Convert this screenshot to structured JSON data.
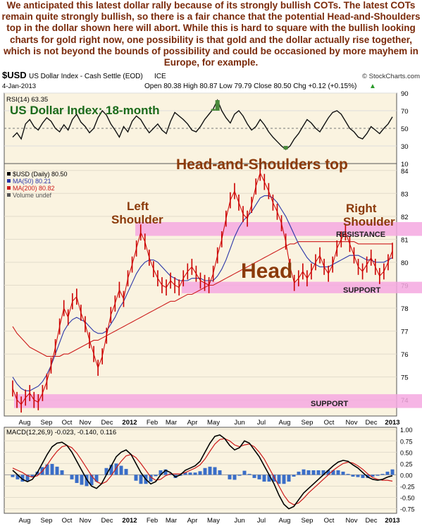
{
  "commentary": "We anticipated this latest dollar rally because of its strongly bullish COTs. The latest COTs remain quite strongly bullish, so there is a fair chance that the potential Head-and-Shoulders top in the dollar shown here will abort. While this is hard to square with the bullish looking charts for gold right now, one possibility is that gold and the dollar actually rise together, which is not beyond the bounds of possibility and could be occasioned by more mayhem in Europe, for example.",
  "chart_header": {
    "symbol": "$USD",
    "name": "US Dollar Index - Cash Settle (EOD)",
    "exchange": "ICE",
    "source": "© StockCharts.com",
    "date": "4-Jan-2013",
    "quote": "Open 80.38  High 80.87  Low 79.79  Close 80.50  Chg +0.12 (+0.15%)",
    "quote_arrow": "▲"
  },
  "colors": {
    "price_bars": "#cc0000",
    "ma50": "#2a35a8",
    "ma200": "#cc1a1a",
    "pink_zone": "#f5a8e0",
    "annotation_brown": "#8b3a0a",
    "rsi_title_green": "#1a6a1a",
    "macd_hist": "#3a6ec8",
    "panel_bg": "#ffffff",
    "background": "#faf3e0"
  },
  "chart_data": [
    {
      "type": "line",
      "panel": "rsi",
      "label": "RSI(14) 63.35",
      "title": "US Dollar Index: 18-month",
      "ylim": [
        10,
        90
      ],
      "yticks": [
        90,
        70,
        50,
        30,
        10
      ],
      "overbought": 70,
      "oversold": 30,
      "series": [
        {
          "name": "RSI(14)",
          "values": [
            40,
            45,
            38,
            55,
            60,
            52,
            48,
            56,
            62,
            58,
            50,
            46,
            54,
            48,
            60,
            66,
            57,
            52,
            45,
            50,
            62,
            70,
            65,
            55,
            48,
            40,
            52,
            46,
            58,
            64,
            60,
            52,
            45,
            50,
            55,
            48,
            44,
            58,
            68,
            64,
            60,
            55,
            48,
            46,
            52,
            60,
            66,
            72,
            82,
            70,
            62,
            56,
            66,
            70,
            64,
            55,
            48,
            52,
            60,
            54,
            46,
            40,
            35,
            30,
            26,
            30,
            38,
            44,
            52,
            60,
            56,
            50,
            46,
            54,
            62,
            68,
            70,
            66,
            58,
            50,
            46,
            40,
            38,
            44,
            52,
            48,
            44,
            50,
            55,
            63
          ]
        }
      ]
    },
    {
      "type": "line",
      "panel": "price",
      "title": "Head-and-Shoulders top",
      "ylim": [
        73.3,
        84.3
      ],
      "yticks": [
        84,
        83,
        82,
        81,
        80,
        79,
        78,
        77,
        76,
        75,
        74
      ],
      "legend": [
        "$USD (Daily) 80.50",
        "MA(50) 80.21",
        "MA(200) 80.82",
        "Volume undef"
      ],
      "annotations": [
        "Left Shoulder",
        "Head",
        "Right Shoulder",
        "RESISTANCE",
        "SUPPORT",
        "SUPPORT"
      ],
      "zones": [
        {
          "label": "RESISTANCE",
          "from_value": 81.15,
          "to_value": 81.75
        },
        {
          "label": "SUPPORT",
          "from_value": 78.65,
          "to_value": 79.15
        },
        {
          "label": "SUPPORT",
          "from_value": 73.65,
          "to_value": 74.25
        }
      ],
      "series": [
        {
          "name": "$USD (Daily) 80.50",
          "values": [
            74.5,
            74.0,
            73.8,
            74.1,
            74.3,
            74.0,
            73.9,
            74.3,
            74.8,
            75.5,
            76.3,
            77.2,
            78.0,
            77.6,
            78.3,
            78.5,
            77.8,
            77.3,
            76.6,
            76.0,
            75.4,
            75.9,
            76.8,
            77.7,
            78.2,
            78.8,
            78.4,
            79.3,
            79.9,
            80.6,
            81.3,
            80.9,
            80.2,
            79.7,
            79.3,
            79.0,
            78.9,
            79.2,
            79.0,
            78.9,
            79.3,
            79.6,
            79.8,
            79.5,
            79.2,
            79.1,
            79.0,
            79.5,
            80.3,
            81.0,
            81.9,
            82.7,
            83.1,
            82.6,
            82.1,
            81.9,
            82.5,
            83.3,
            83.9,
            83.5,
            83.1,
            82.6,
            82.2,
            81.7,
            80.9,
            79.8,
            79.1,
            79.3,
            79.6,
            79.3,
            79.6,
            80.0,
            80.3,
            79.8,
            79.5,
            79.9,
            80.6,
            81.0,
            81.3,
            80.8,
            80.3,
            79.8,
            79.6,
            79.9,
            80.2,
            79.8,
            79.4,
            79.6,
            80.0,
            80.5
          ]
        },
        {
          "name": "MA(50) 80.21",
          "values": [
            75.0,
            74.7,
            74.5,
            74.4,
            74.4,
            74.5,
            74.6,
            74.8,
            75.1,
            75.5,
            76.0,
            76.5,
            77.0,
            77.3,
            77.5,
            77.6,
            77.5,
            77.4,
            77.2,
            77.0,
            76.9,
            76.9,
            77.0,
            77.3,
            77.6,
            78.0,
            78.3,
            78.7,
            79.1,
            79.5,
            79.8,
            80.0,
            80.1,
            80.1,
            80.0,
            79.8,
            79.6,
            79.4,
            79.3,
            79.2,
            79.2,
            79.2,
            79.3,
            79.3,
            79.3,
            79.2,
            79.2,
            79.2,
            79.4,
            79.7,
            80.1,
            80.6,
            81.1,
            81.5,
            81.8,
            82.0,
            82.2,
            82.5,
            82.8,
            82.9,
            82.9,
            82.8,
            82.6,
            82.3,
            82.0,
            81.6,
            81.2,
            80.8,
            80.5,
            80.2,
            80.0,
            79.9,
            79.8,
            79.8,
            79.8,
            79.9,
            80.0,
            80.1,
            80.2,
            80.3,
            80.3,
            80.3,
            80.2,
            80.1,
            80.1,
            80.0,
            80.0,
            80.0,
            80.1,
            80.2
          ]
        },
        {
          "name": "MA(200) 80.82",
          "values": [
            77.2,
            76.9,
            76.7,
            76.5,
            76.3,
            76.2,
            76.1,
            76.0,
            75.9,
            75.9,
            75.9,
            75.9,
            76.0,
            76.0,
            76.1,
            76.2,
            76.3,
            76.4,
            76.5,
            76.6,
            76.6,
            76.7,
            76.8,
            76.9,
            77.0,
            77.1,
            77.2,
            77.3,
            77.4,
            77.5,
            77.6,
            77.7,
            77.8,
            77.9,
            78.0,
            78.1,
            78.2,
            78.3,
            78.3,
            78.4,
            78.5,
            78.6,
            78.6,
            78.7,
            78.8,
            78.9,
            79.0,
            79.0,
            79.1,
            79.2,
            79.3,
            79.4,
            79.5,
            79.6,
            79.7,
            79.8,
            79.9,
            80.0,
            80.1,
            80.2,
            80.3,
            80.4,
            80.5,
            80.6,
            80.7,
            80.8,
            80.8,
            80.9,
            80.9,
            80.9,
            80.9,
            80.9,
            80.9,
            80.9,
            80.9,
            80.9,
            80.9,
            80.9,
            80.9,
            80.9,
            80.9,
            80.8,
            80.8,
            80.8,
            80.8,
            80.8,
            80.8,
            80.8,
            80.8,
            80.8
          ]
        }
      ]
    },
    {
      "type": "line",
      "panel": "macd",
      "label": "MACD(12,26,9) -0.023, -0.140, 0.116",
      "ylim": [
        -0.85,
        1.05
      ],
      "yticks": [
        1.0,
        0.75,
        0.5,
        0.25,
        0.0,
        -0.25,
        -0.5,
        -0.75
      ],
      "series": [
        {
          "name": "MACD",
          "values": [
            0.1,
            0.0,
            -0.1,
            -0.15,
            -0.1,
            0.05,
            0.25,
            0.45,
            0.62,
            0.7,
            0.72,
            0.65,
            0.5,
            0.3,
            0.1,
            -0.1,
            -0.25,
            -0.3,
            -0.2,
            0.0,
            0.2,
            0.4,
            0.5,
            0.55,
            0.45,
            0.25,
            0.05,
            -0.1,
            -0.2,
            -0.15,
            0.0,
            0.1,
            0.05,
            -0.05,
            0.0,
            0.1,
            0.15,
            0.2,
            0.3,
            0.5,
            0.7,
            0.85,
            0.88,
            0.8,
            0.65,
            0.55,
            0.6,
            0.75,
            0.7,
            0.55,
            0.4,
            0.2,
            0.0,
            -0.2,
            -0.45,
            -0.65,
            -0.75,
            -0.7,
            -0.55,
            -0.4,
            -0.3,
            -0.2,
            -0.1,
            0.0,
            0.1,
            0.2,
            0.28,
            0.32,
            0.3,
            0.22,
            0.15,
            0.05,
            -0.05,
            -0.1,
            -0.12,
            -0.1,
            -0.05,
            -0.02
          ]
        },
        {
          "name": "Signal",
          "values": [
            0.15,
            0.1,
            0.05,
            -0.02,
            -0.05,
            -0.02,
            0.08,
            0.22,
            0.38,
            0.52,
            0.62,
            0.65,
            0.6,
            0.48,
            0.32,
            0.15,
            -0.02,
            -0.15,
            -0.2,
            -0.15,
            -0.02,
            0.15,
            0.3,
            0.42,
            0.45,
            0.38,
            0.25,
            0.1,
            -0.05,
            -0.12,
            -0.1,
            -0.02,
            0.02,
            0.02,
            0.02,
            0.05,
            0.1,
            0.15,
            0.22,
            0.35,
            0.52,
            0.68,
            0.78,
            0.8,
            0.75,
            0.66,
            0.62,
            0.66,
            0.68,
            0.62,
            0.5,
            0.35,
            0.15,
            -0.05,
            -0.25,
            -0.45,
            -0.6,
            -0.66,
            -0.62,
            -0.52,
            -0.4,
            -0.3,
            -0.2,
            -0.1,
            0.0,
            0.1,
            0.18,
            0.25,
            0.28,
            0.26,
            0.2,
            0.12,
            0.02,
            -0.06,
            -0.1,
            -0.12,
            -0.12,
            -0.14
          ]
        }
      ]
    }
  ],
  "x_axis_labels": [
    "Aug",
    "Sep",
    "Oct",
    "Nov",
    "Dec",
    "2012",
    "Feb",
    "Mar",
    "Apr",
    "May",
    "Jun",
    "Jul",
    "Aug",
    "Sep",
    "Oct",
    "Nov",
    "Dec",
    "2013"
  ]
}
